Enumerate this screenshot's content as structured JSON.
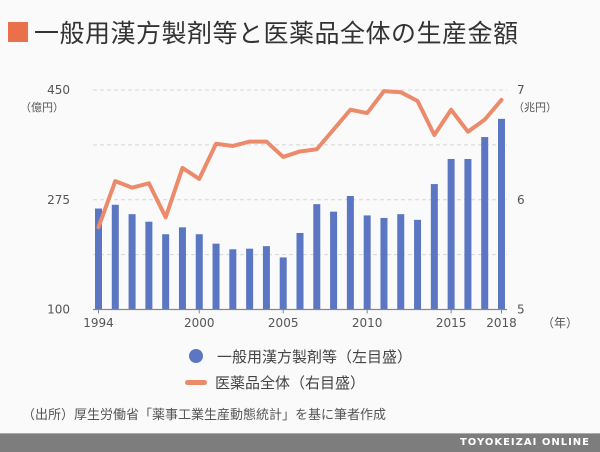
{
  "title": "一般用漢方製剤等と医薬品全体の生産金額",
  "colors": {
    "title_marker": "#e8704a",
    "bars": "#5b76c2",
    "line": "#ec8a6c",
    "footer": "#7d7d7d"
  },
  "chart_data": {
    "type": "bar+line",
    "title": "一般用漢方製剤等と医薬品全体の生産金額",
    "categories": [
      1994,
      1995,
      1996,
      1997,
      1998,
      1999,
      2000,
      2001,
      2002,
      2003,
      2004,
      2005,
      2006,
      2007,
      2008,
      2009,
      2010,
      2011,
      2012,
      2013,
      2014,
      2015,
      2016,
      2017,
      2018
    ],
    "x_tick_labels": [
      "1994",
      "2000",
      "2005",
      "2010",
      "2015",
      "2018"
    ],
    "xlabel": "（年）",
    "left_axis": {
      "label": "（億円）",
      "ylim": [
        100,
        450
      ],
      "ticks": [
        "100",
        "275",
        "450"
      ]
    },
    "right_axis": {
      "label": "（兆円）",
      "ylim": [
        5,
        7
      ],
      "ticks": [
        "5",
        "6",
        "7"
      ]
    },
    "grid": "horizontal dashed",
    "series": [
      {
        "name": "一般用漢方製剤等（左目盛）",
        "type": "bar",
        "axis": "left",
        "values": [
          261,
          267,
          252,
          240,
          220,
          231,
          220,
          205,
          196,
          197,
          201,
          183,
          222,
          268,
          256,
          281,
          250,
          246,
          252,
          243,
          300,
          340,
          340,
          375,
          404
        ]
      },
      {
        "name": "医薬品全体（右目盛）",
        "type": "line",
        "axis": "right",
        "values": [
          5.75,
          6.17,
          6.11,
          6.15,
          5.84,
          6.29,
          6.19,
          6.51,
          6.49,
          6.53,
          6.53,
          6.39,
          6.44,
          6.46,
          6.64,
          6.82,
          6.79,
          6.99,
          6.98,
          6.9,
          6.59,
          6.82,
          6.62,
          6.73,
          6.91
        ]
      }
    ],
    "legend": "bottom-center"
  },
  "legend": {
    "bar_label": "一般用漢方製剤等（左目盛）",
    "line_label": "医薬品全体（右目盛）"
  },
  "source": "（出所）厚生労働省「薬事工業生産動態統計」を基に筆者作成",
  "footer": "TOYOKEIZAI ONLINE"
}
